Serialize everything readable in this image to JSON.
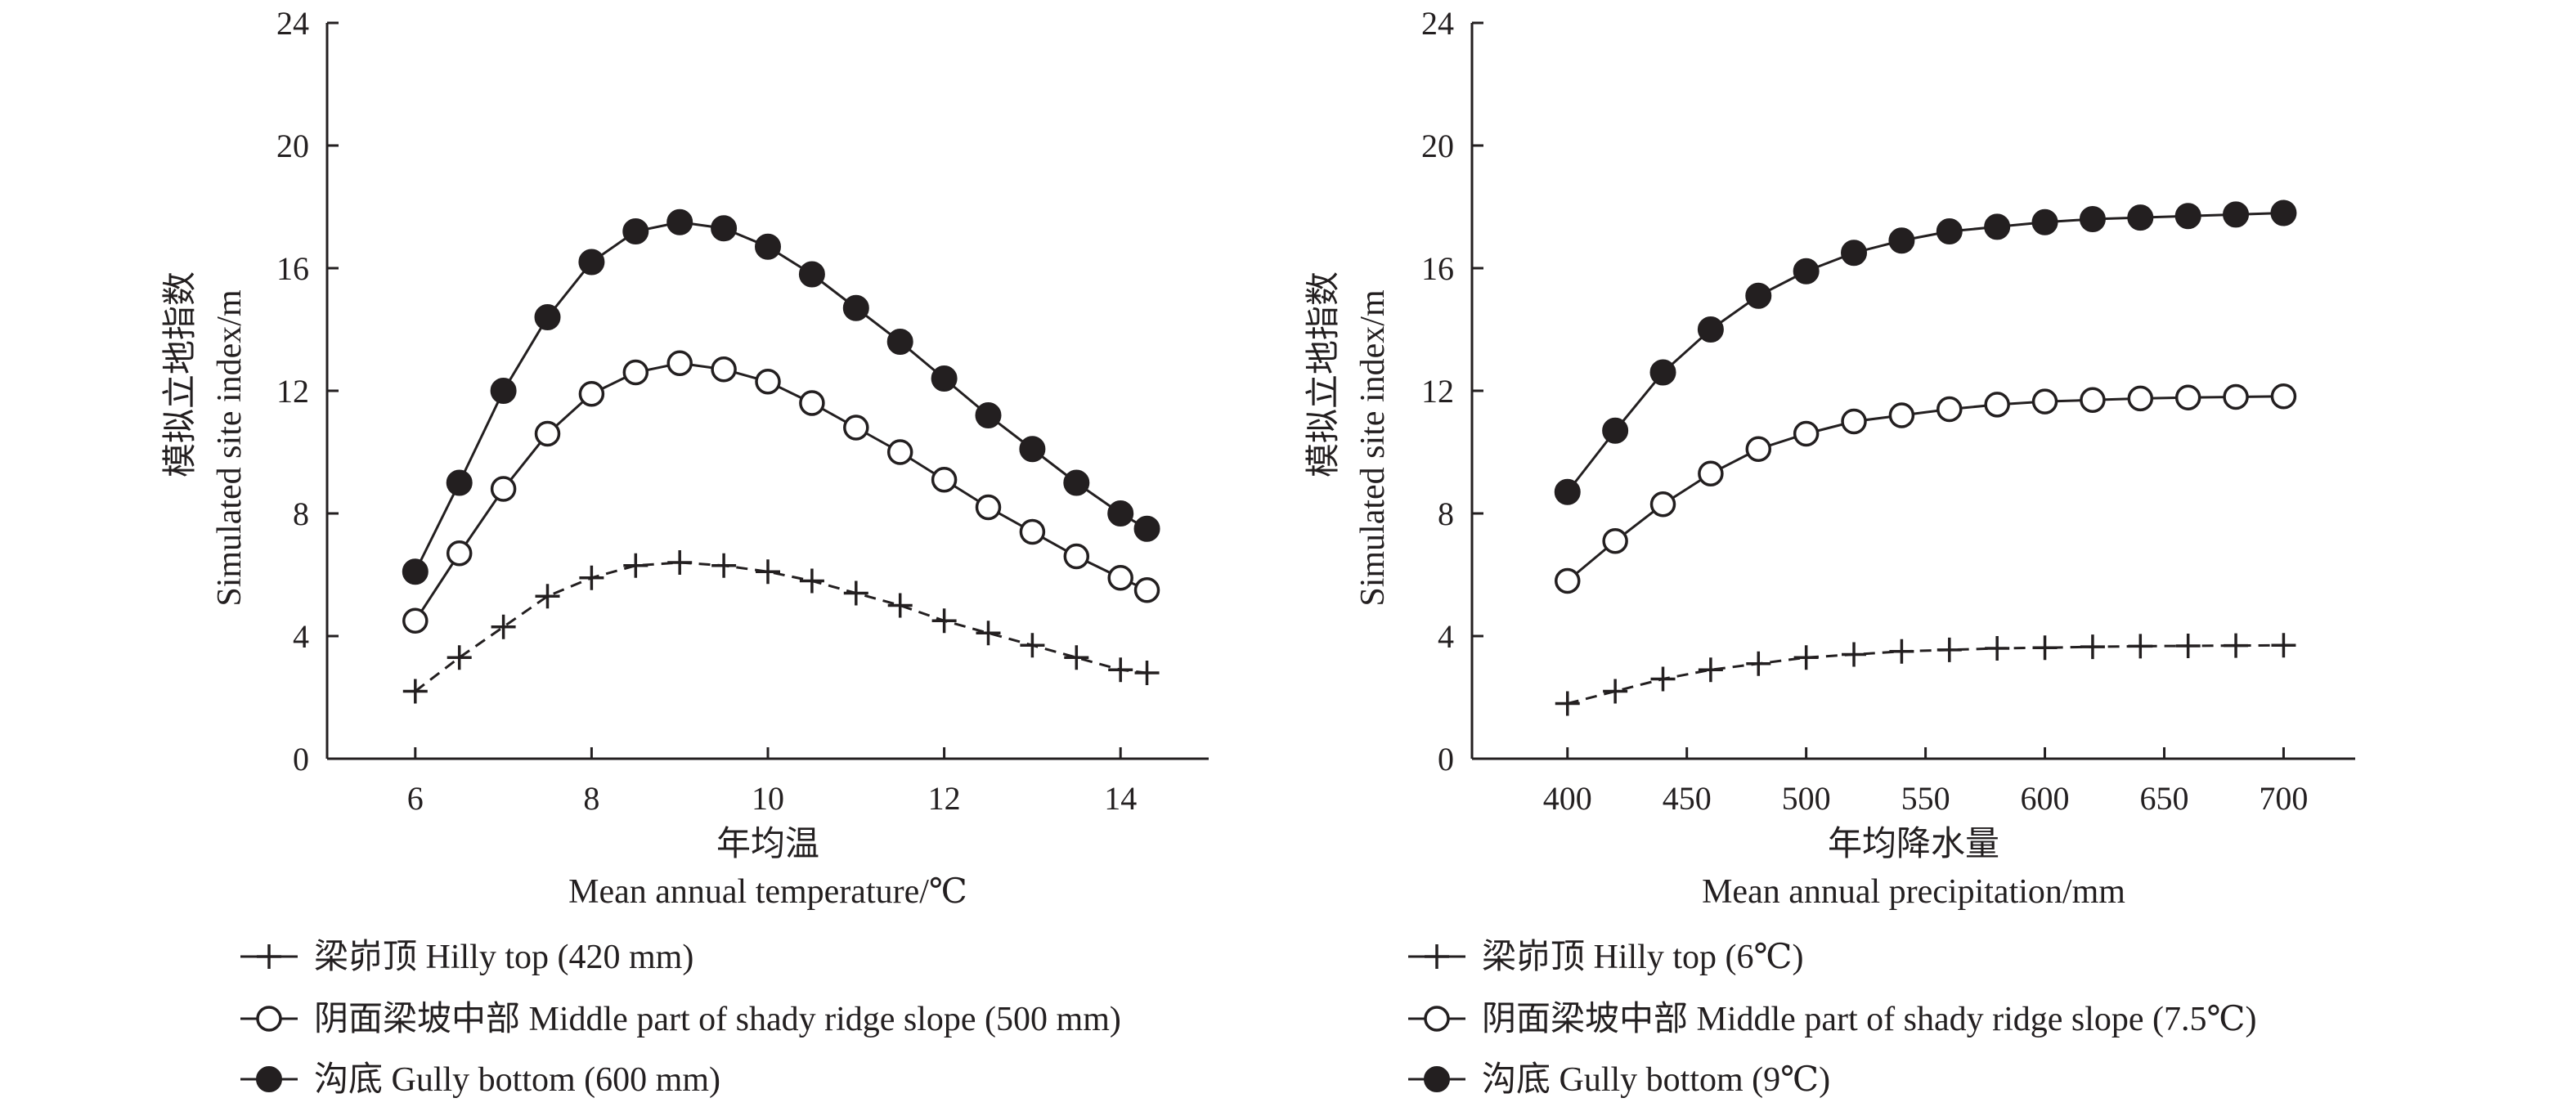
{
  "chart_data": [
    {
      "type": "line",
      "xlabel_cn": "年均温",
      "xlabel_en": "Mean annual temperature/℃",
      "ylabel_cn": "模拟立地指数",
      "ylabel_en": "Simulated site index/m",
      "xlim": [
        5,
        15
      ],
      "ylim": [
        0,
        24
      ],
      "xticks": [
        6,
        8,
        10,
        12,
        14
      ],
      "yticks": [
        0,
        4,
        8,
        12,
        16,
        20,
        24
      ],
      "x": [
        6,
        6.5,
        7,
        7.5,
        8,
        8.5,
        9,
        9.5,
        10,
        10.5,
        11,
        11.5,
        12,
        12.5,
        13,
        13.5,
        14,
        14.3
      ],
      "series": [
        {
          "name": "梁峁顶 Hilly top (420 mm)",
          "marker": "plus",
          "line": "dashed",
          "values": [
            2.2,
            3.3,
            4.3,
            5.3,
            5.9,
            6.3,
            6.4,
            6.3,
            6.1,
            5.8,
            5.4,
            5.0,
            4.5,
            4.1,
            3.7,
            3.3,
            2.9,
            2.8
          ]
        },
        {
          "name": "阴面梁坡中部 Middle part of shady ridge slope  (500 mm)",
          "marker": "open-circle",
          "line": "solid",
          "values": [
            4.5,
            6.7,
            8.8,
            10.6,
            11.9,
            12.6,
            12.9,
            12.7,
            12.3,
            11.6,
            10.8,
            10.0,
            9.1,
            8.2,
            7.4,
            6.6,
            5.9,
            5.5
          ]
        },
        {
          "name": "沟底 Gully bottom (600 mm)",
          "marker": "filled-circle",
          "line": "solid",
          "values": [
            6.1,
            9.0,
            12.0,
            14.4,
            16.2,
            17.2,
            17.5,
            17.3,
            16.7,
            15.8,
            14.7,
            13.6,
            12.4,
            11.2,
            10.1,
            9.0,
            8.0,
            7.5
          ]
        }
      ]
    },
    {
      "type": "line",
      "xlabel_cn": "年均降水量",
      "xlabel_en": "Mean annual precipitation/mm",
      "ylabel_cn": "模拟立地指数",
      "ylabel_en": "Simulated site index/m",
      "xlim": [
        360,
        730
      ],
      "ylim": [
        0,
        24
      ],
      "xticks": [
        400,
        450,
        500,
        550,
        600,
        650,
        700
      ],
      "yticks": [
        0,
        4,
        8,
        12,
        16,
        20,
        24
      ],
      "x": [
        400,
        420,
        440,
        460,
        480,
        500,
        520,
        540,
        560,
        580,
        600,
        620,
        640,
        660,
        680,
        700
      ],
      "series": [
        {
          "name": "梁峁顶 Hilly top (6℃)",
          "marker": "plus",
          "line": "dashed",
          "values": [
            1.8,
            2.2,
            2.6,
            2.9,
            3.1,
            3.3,
            3.4,
            3.5,
            3.55,
            3.6,
            3.62,
            3.65,
            3.67,
            3.68,
            3.69,
            3.7
          ]
        },
        {
          "name": "阴面梁坡中部 Middle part of shady ridge slope  (7.5℃)",
          "marker": "open-circle",
          "line": "solid",
          "values": [
            5.8,
            7.1,
            8.3,
            9.3,
            10.1,
            10.6,
            11.0,
            11.2,
            11.4,
            11.55,
            11.65,
            11.7,
            11.75,
            11.78,
            11.8,
            11.82
          ]
        },
        {
          "name": "沟底 Gully bottom (9℃)",
          "marker": "filled-circle",
          "line": "solid",
          "values": [
            8.7,
            10.7,
            12.6,
            14.0,
            15.1,
            15.9,
            16.5,
            16.9,
            17.2,
            17.35,
            17.5,
            17.6,
            17.65,
            17.7,
            17.75,
            17.8
          ]
        }
      ]
    }
  ]
}
